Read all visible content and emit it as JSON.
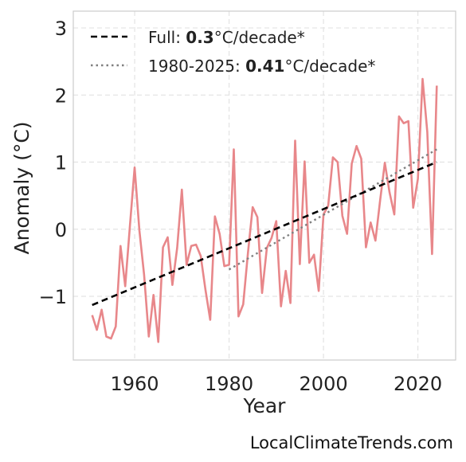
{
  "chart_data": {
    "type": "line",
    "xlabel": "Year",
    "ylabel": "Anomaly (°C)",
    "xlim": [
      1947,
      2028
    ],
    "ylim": [
      -1.95,
      3.25
    ],
    "xticks": [
      1960,
      1980,
      2000,
      2020
    ],
    "yticks": [
      3,
      2,
      1,
      0,
      -1
    ],
    "ytick_labels": [
      "3",
      "2",
      "1",
      "0",
      "−1"
    ],
    "grid": true,
    "legend_position": "top-left",
    "colors": {
      "series": "#e8878a",
      "full_trend": "#000000",
      "recent_trend": "#7f7f7f"
    },
    "series": [
      {
        "x": [
          1951,
          1952,
          1953,
          1954,
          1955,
          1956,
          1957,
          1958,
          1959,
          1960,
          1961,
          1962,
          1963,
          1964,
          1965,
          1966,
          1967,
          1968,
          1969,
          1970,
          1971,
          1972,
          1973,
          1974,
          1975,
          1976,
          1977,
          1978,
          1979,
          1980,
          1981,
          1982,
          1983,
          1984,
          1985,
          1986,
          1987,
          1988,
          1989,
          1990,
          1991,
          1992,
          1993,
          1994,
          1995,
          1996,
          1997,
          1998,
          1999,
          2000,
          2001,
          2002,
          2003,
          2004,
          2005,
          2006,
          2007,
          2008,
          2009,
          2010,
          2011,
          2012,
          2013,
          2014,
          2015,
          2016,
          2017,
          2018,
          2019,
          2020,
          2021,
          2022,
          2023,
          2024
        ],
        "values": [
          -1.28,
          -1.5,
          -1.2,
          -1.6,
          -1.63,
          -1.45,
          -0.25,
          -0.85,
          0.05,
          0.92,
          -0.02,
          -0.68,
          -1.6,
          -0.98,
          -1.68,
          -0.27,
          -0.12,
          -0.83,
          -0.28,
          0.59,
          -0.53,
          -0.25,
          -0.23,
          -0.4,
          -0.9,
          -1.35,
          0.19,
          -0.07,
          -0.55,
          -0.53,
          1.19,
          -1.3,
          -1.12,
          -0.35,
          0.33,
          0.18,
          -0.95,
          -0.28,
          -0.13,
          0.12,
          -1.15,
          -0.62,
          -1.1,
          1.32,
          -0.52,
          1.01,
          -0.5,
          -0.38,
          -0.92,
          0.22,
          0.35,
          1.07,
          1.0,
          0.2,
          -0.07,
          0.98,
          1.24,
          1.05,
          -0.27,
          0.1,
          -0.17,
          0.43,
          0.99,
          0.55,
          0.22,
          1.68,
          1.58,
          1.61,
          0.32,
          0.75,
          2.24,
          1.45,
          -0.37,
          2.14
        ]
      }
    ],
    "trend_lines": [
      {
        "x": [
          1951,
          2024
        ],
        "values": [
          -1.13,
          1.0
        ]
      },
      {
        "x": [
          1980,
          2024
        ],
        "values": [
          -0.6,
          1.19
        ]
      }
    ],
    "legend": [
      {
        "prefix": "Full: ",
        "bold": "0.3",
        "suffix": "°C/decade*"
      },
      {
        "prefix": "1980-2025: ",
        "bold": "0.41",
        "suffix": "°C/decade*"
      }
    ]
  },
  "watermark": "LocalClimateTrends.com"
}
